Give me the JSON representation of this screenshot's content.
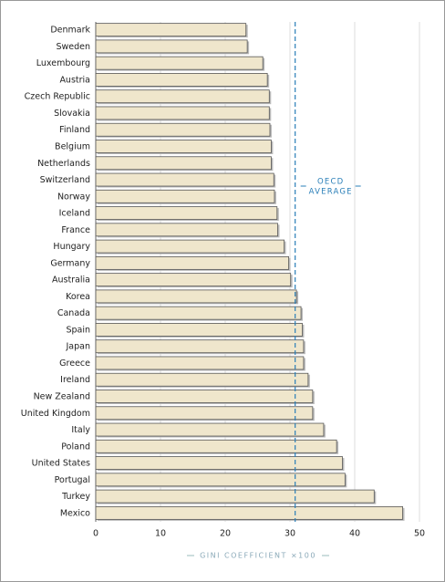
{
  "chart_data": {
    "type": "hbar",
    "categories": [
      "Denmark",
      "Sweden",
      "Luxembourg",
      "Austria",
      "Czech Republic",
      "Slovakia",
      "Finland",
      "Belgium",
      "Netherlands",
      "Switzerland",
      "Norway",
      "Iceland",
      "France",
      "Hungary",
      "Germany",
      "Australia",
      "Korea",
      "Canada",
      "Spain",
      "Japan",
      "Greece",
      "Ireland",
      "New Zealand",
      "United Kingdom",
      "Italy",
      "Poland",
      "United States",
      "Portugal",
      "Turkey",
      "Mexico"
    ],
    "values": [
      23.2,
      23.4,
      25.8,
      26.5,
      26.8,
      26.8,
      26.9,
      27.1,
      27.1,
      27.5,
      27.6,
      28.0,
      28.1,
      29.1,
      29.8,
      30.1,
      31.0,
      31.7,
      31.9,
      32.1,
      32.1,
      32.8,
      33.5,
      33.5,
      35.2,
      37.2,
      38.1,
      38.5,
      43.0,
      47.4
    ],
    "color": "#efe6cc",
    "xlabel": "GINI COEFFICIENT ×100",
    "xlim": [
      0,
      50
    ],
    "xticks": [
      0,
      10,
      20,
      30,
      40,
      50
    ],
    "grid": true,
    "reference_line": {
      "value": 30.8,
      "label": [
        "OECD",
        "AVERAGE"
      ],
      "color": "#2a7fb8"
    }
  }
}
